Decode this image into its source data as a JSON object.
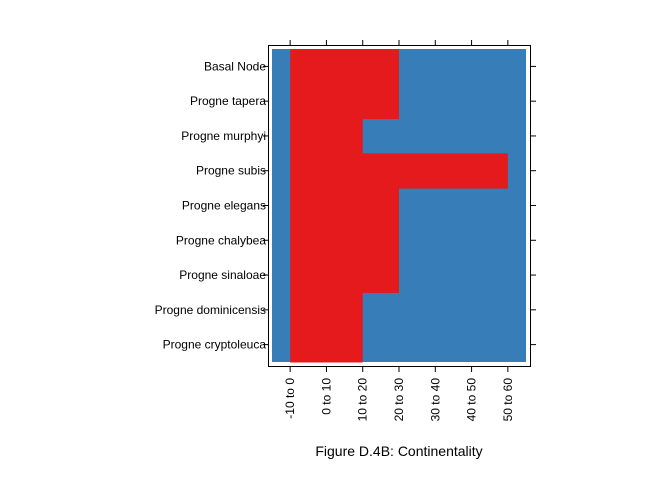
{
  "chart_data": {
    "type": "heatmap",
    "caption": "Figure D.4B: Continentality",
    "rows": [
      "Basal Node",
      "Progne tapera",
      "Progne murphyi",
      "Progne subis",
      "Progne elegans",
      "Progne chalybea",
      "Progne sinaloae",
      "Progne dominicensis",
      "Progne cryptoleuca"
    ],
    "columns": [
      "-10 to 0",
      "0 to 10",
      "10 to 20",
      "20 to 30",
      "30 to 40",
      "40 to 50",
      "50 to 60"
    ],
    "x_range": [
      -10,
      60
    ],
    "values": [
      {
        "row": "Basal Node",
        "ranges": [
          [
            -5,
            25
          ]
        ]
      },
      {
        "row": "Progne tapera",
        "ranges": [
          [
            -5,
            25
          ]
        ]
      },
      {
        "row": "Progne murphyi",
        "ranges": [
          [
            -5,
            15
          ]
        ]
      },
      {
        "row": "Progne subis",
        "ranges": [
          [
            -5,
            55
          ]
        ]
      },
      {
        "row": "Progne elegans",
        "ranges": [
          [
            -5,
            25
          ]
        ]
      },
      {
        "row": "Progne chalybea",
        "ranges": [
          [
            -5,
            25
          ]
        ]
      },
      {
        "row": "Progne sinaloae",
        "ranges": [
          [
            -5,
            25
          ]
        ]
      },
      {
        "row": "Progne dominicensis",
        "ranges": [
          [
            -5,
            15
          ]
        ]
      },
      {
        "row": "Progne cryptoleuca",
        "ranges": [
          [
            -5,
            15
          ]
        ]
      }
    ],
    "colors": {
      "present": "#E41A1C",
      "absent": "#377EB8"
    }
  }
}
